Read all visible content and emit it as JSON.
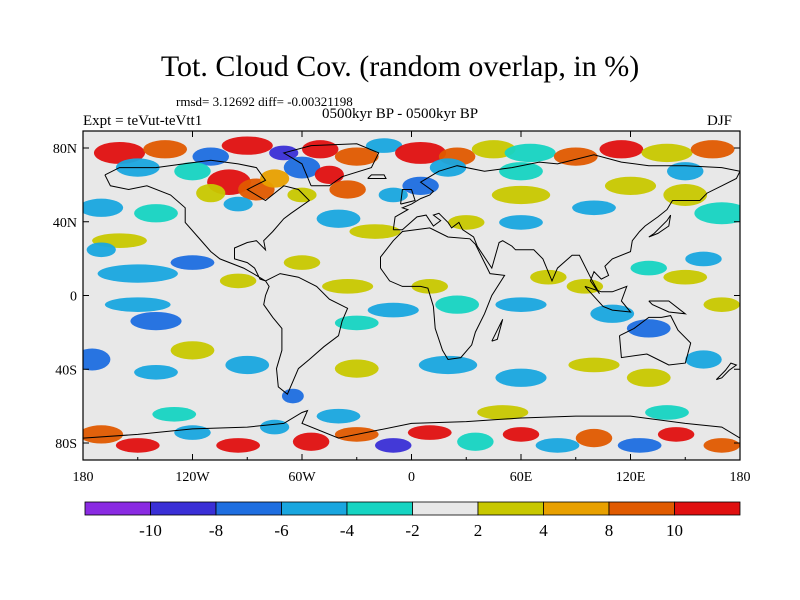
{
  "title": "Tot. Cloud Cov. (random overlap, in %)",
  "stats": "rmsd= 3.12692 diff= -0.00321198",
  "period": "0500kyr BP - 0500kyr BP",
  "experiment": "Expt = teVut-teVtt1",
  "season": "DJF",
  "axes": {
    "x_ticks": [
      "180",
      "120W",
      "60W",
      "0",
      "60E",
      "120E",
      "180"
    ],
    "y_ticks": [
      "80N",
      "40N",
      "0",
      "40S",
      "80S"
    ],
    "lon_range": [
      -180,
      180
    ],
    "lat_range": [
      -90,
      90
    ]
  },
  "colorbar": {
    "labels": [
      "-10",
      "-8",
      "-6",
      "-4",
      "-2",
      "2",
      "4",
      "8",
      "10"
    ],
    "levels": [
      -10,
      -8,
      -6,
      -4,
      -2,
      2,
      4,
      8,
      10
    ],
    "colors": [
      "#8a2be2",
      "#3a2fd6",
      "#1e6ee0",
      "#19a6df",
      "#16d4c2",
      "#e8e8e8",
      "#c8c800",
      "#e8a000",
      "#e05a00",
      "#e01010"
    ]
  },
  "map": {
    "background_color": "#e8e8e8",
    "coastline_color": "#000000"
  }
}
